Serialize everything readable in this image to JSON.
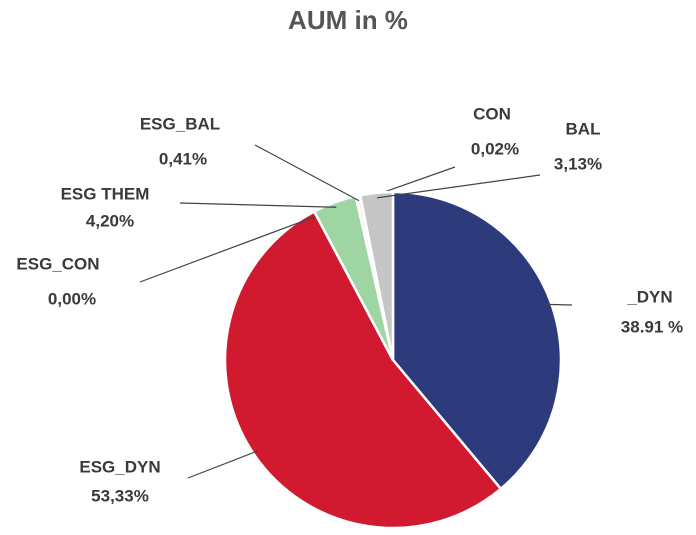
{
  "chart_data": {
    "type": "pie",
    "title": "AUM in %",
    "categories": [
      "_DYN",
      "ESG_DYN",
      "ESG_CON",
      "ESG THEM",
      "ESG_BAL",
      "CON",
      "BAL"
    ],
    "values": [
      38.91,
      53.33,
      0.0,
      4.2,
      0.41,
      0.02,
      3.13
    ],
    "value_labels": [
      "38.91 %",
      "53,33%",
      "0,00%",
      "4,20%",
      "0,41%",
      "0,02%",
      "3,13%"
    ],
    "colors": [
      "#2d3a7c",
      "#d11a30",
      "#8ac08e",
      "#9fd4a3",
      "#f2f2f2",
      "#d8d8d8",
      "#c6c6c6"
    ]
  }
}
